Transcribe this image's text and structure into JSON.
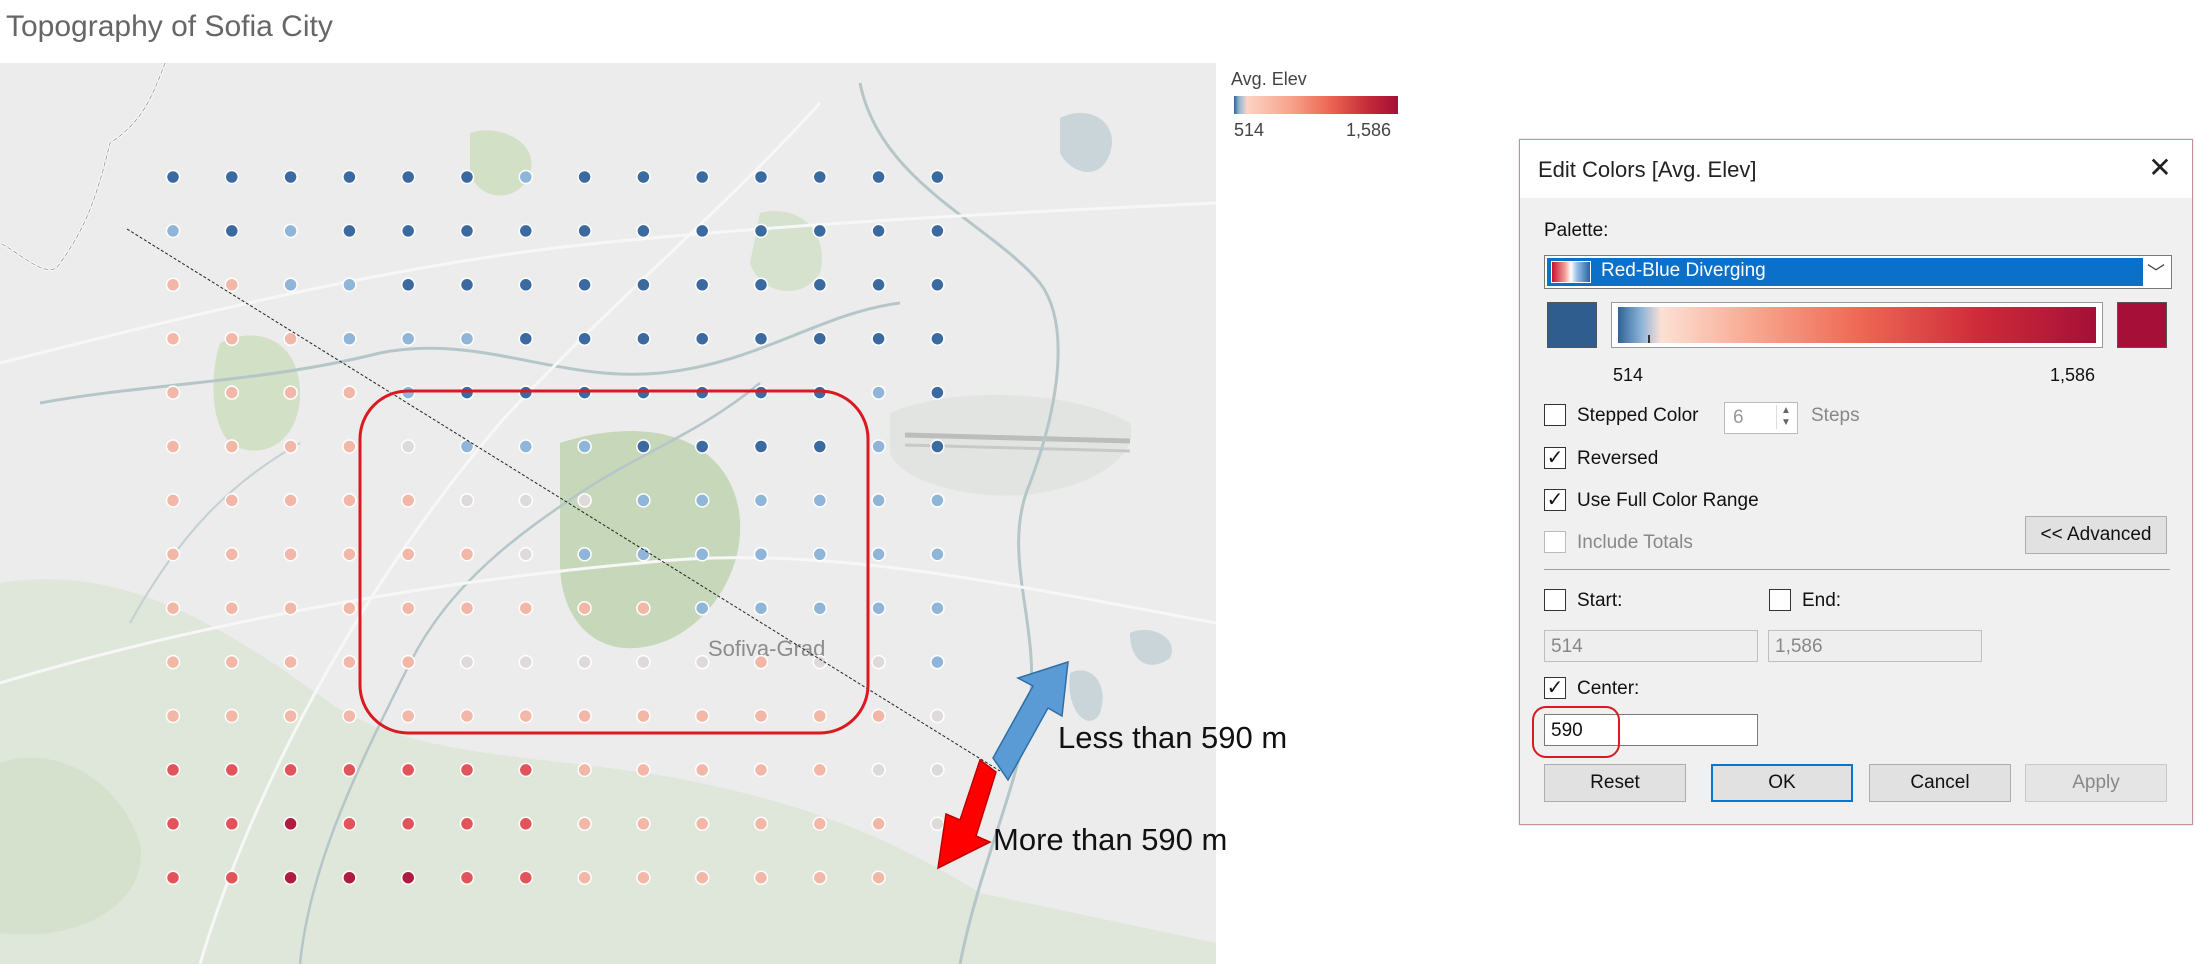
{
  "page": {
    "title": "Topography of Sofia City"
  },
  "map": {
    "place_label": "Sofiva-Grad",
    "legend": {
      "title": "Avg. Elev",
      "min": "514",
      "max": "1,586"
    },
    "annotation_less": "Less than 590 m",
    "annotation_more": "More than 590 m",
    "colors": {
      "blue_dark": "#2f5e8e",
      "red_dark": "#a50f38",
      "highlight": "#d91a20",
      "arrow_blue": "#5b9bd5",
      "arrow_red": "#ff0000"
    },
    "dot_rows": [
      "BBBBBBbBBBBBBB",
      "bBbBBBBBBBBBBB",
      "ppbbBBBBBBBBBB",
      "pppbbbBBBBBBBB",
      "ppppbBBBBBBBbB",
      "pppplbbbBBBBbB",
      "ppppplllbbbbbb",
      "pppppplbbbbbbb",
      "pppppppppbbbbb",
      "ppppplllllpllb",
      "pppppppppppppl",
      "rrrrrrrpppppll",
      "rrRrrrrppppppl",
      "rrRRRrrpppppp-"
    ]
  },
  "dialog": {
    "title": "Edit Colors [Avg. Elev]",
    "close_icon": "close-icon",
    "palette_label": "Palette:",
    "palette_value": "Red-Blue Diverging",
    "range_min": "514",
    "range_max": "1,586",
    "stepped_color_label": "Stepped Color",
    "stepped_color_checked": false,
    "steps_value": "6",
    "steps_label": "Steps",
    "reversed_label": "Reversed",
    "reversed_checked": true,
    "full_range_label": "Use Full Color Range",
    "full_range_checked": true,
    "include_totals_label": "Include Totals",
    "include_totals_checked": false,
    "advanced_label": "<< Advanced",
    "start_label": "Start:",
    "start_value": "514",
    "end_label": "End:",
    "end_value": "1,586",
    "center_label": "Center:",
    "center_checked": true,
    "center_value": "590",
    "buttons": {
      "reset": "Reset",
      "ok": "OK",
      "cancel": "Cancel",
      "apply": "Apply"
    }
  }
}
